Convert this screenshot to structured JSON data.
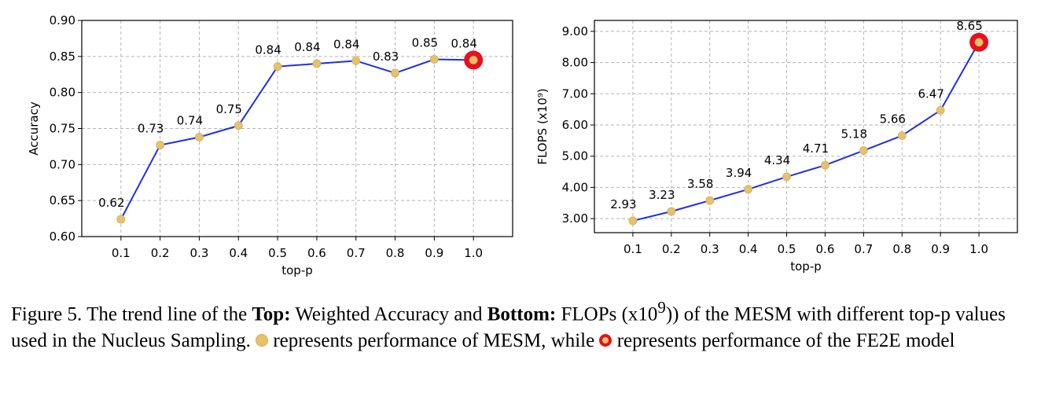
{
  "chart_data": [
    {
      "type": "line",
      "xlabel": "top-p",
      "ylabel": "Accuracy",
      "x": [
        0.1,
        0.2,
        0.3,
        0.4,
        0.5,
        0.6,
        0.7,
        0.8,
        0.9,
        1.0
      ],
      "x_tick_labels": [
        "0.1",
        "0.2",
        "0.3",
        "0.4",
        "0.5",
        "0.6",
        "0.7",
        "0.8",
        "0.9",
        "1.0"
      ],
      "y_tick_labels": [
        "0.60",
        "0.65",
        "0.70",
        "0.75",
        "0.80",
        "0.85",
        "0.90"
      ],
      "y_ticks": [
        0.6,
        0.65,
        0.7,
        0.75,
        0.8,
        0.85,
        0.9
      ],
      "ylim": [
        0.6,
        0.9
      ],
      "xlim": [
        0,
        1.1
      ],
      "values": [
        0.624,
        0.727,
        0.738,
        0.754,
        0.836,
        0.84,
        0.844,
        0.827,
        0.846,
        0.845
      ],
      "data_labels": [
        "0.62",
        "0.73",
        "0.74",
        "0.75",
        "0.84",
        "0.84",
        "0.84",
        "0.83",
        "0.85",
        "0.84"
      ],
      "highlight_index": 9,
      "grid": true,
      "line_color": "#1f2ee8",
      "marker_color": "#e6c26a",
      "highlight_color": "#e8101e"
    },
    {
      "type": "line",
      "xlabel": "top-p",
      "ylabel": "FLOPS (x10⁹)",
      "x": [
        0.1,
        0.2,
        0.3,
        0.4,
        0.5,
        0.6,
        0.7,
        0.8,
        0.9,
        1.0
      ],
      "x_tick_labels": [
        "0.1",
        "0.2",
        "0.3",
        "0.4",
        "0.5",
        "0.6",
        "0.7",
        "0.8",
        "0.9",
        "1.0"
      ],
      "y_tick_labels": [
        "3.00",
        "4.00",
        "5.00",
        "6.00",
        "7.00",
        "8.00",
        "9.00"
      ],
      "y_ticks": [
        3,
        4,
        5,
        6,
        7,
        8,
        9
      ],
      "ylim": [
        2.55,
        9.35
      ],
      "xlim": [
        0,
        1.1
      ],
      "values": [
        2.93,
        3.23,
        3.58,
        3.94,
        4.34,
        4.71,
        5.18,
        5.66,
        6.47,
        8.65
      ],
      "data_labels": [
        "2.93",
        "3.23",
        "3.58",
        "3.94",
        "4.34",
        "4.71",
        "5.18",
        "5.66",
        "6.47",
        "8.65"
      ],
      "highlight_index": 9,
      "grid": true,
      "line_color": "#1f2ee8",
      "marker_color": "#e6c26a",
      "highlight_color": "#e8101e"
    }
  ],
  "caption": {
    "prefix": "Figure 5. The trend line of the ",
    "top_label": "Top:",
    "part1": " Weighted Accuracy and ",
    "bottom_label": "Bottom:",
    "part2": " FLOPs (x10",
    "exponent": "9",
    "part3": ")) of the MESM with different top-p values used in the Nucleus Sampling. ",
    "part4": " represents performance of MESM, while ",
    "part5": " represents performance of the FE2E model"
  }
}
